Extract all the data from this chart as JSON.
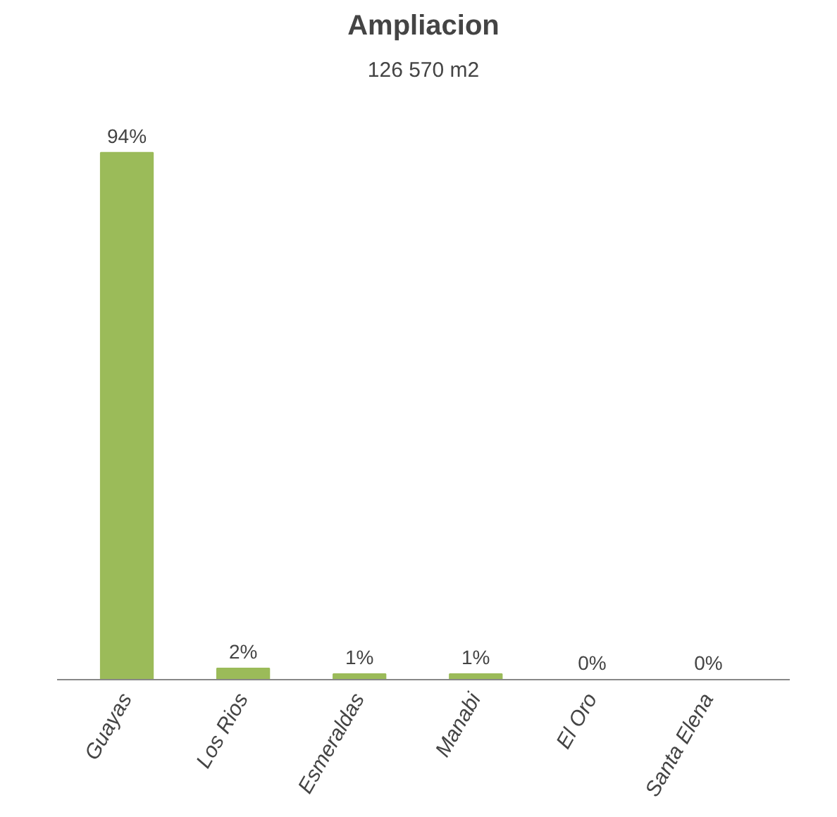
{
  "chart_data": {
    "type": "bar",
    "title": "Ampliacion",
    "subtitle": "126 570 m2",
    "categories": [
      "Guayas",
      "Los Rios",
      "Esmeraldas",
      "Manabi",
      "El Oro",
      "Santa Elena"
    ],
    "values": [
      94,
      2,
      1,
      1,
      0,
      0
    ],
    "value_labels": [
      "94%",
      "2%",
      "1%",
      "1%",
      "0%",
      "0%"
    ],
    "color": "#9bbb59",
    "grid": false
  }
}
